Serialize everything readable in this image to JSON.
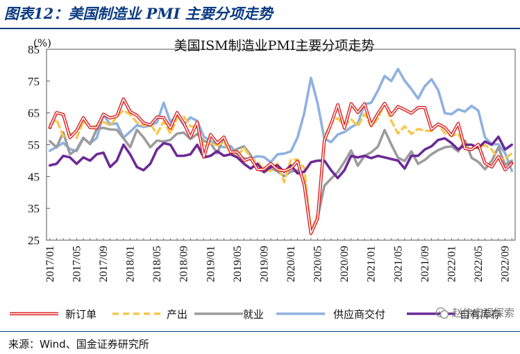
{
  "figure_title": "图表12：美国制造业 PMI 主要分项走势",
  "source": "来源：Wind、国金证券研究所",
  "watermark": "赵伟宏观探索",
  "colors": {
    "header_blue": "#0b3b80",
    "new_orders": "#e01b1b",
    "production": "#f6c84c",
    "employment": "#9c9c9c",
    "supplier_deliveries": "#8eb1e0",
    "inventories": "#6c2a96"
  },
  "chart_data": {
    "type": "line",
    "title": "美国ISM制造业PMI主要分项走势",
    "ylabel": "(%)",
    "ylim": [
      25,
      85
    ],
    "yticks": [
      25,
      35,
      45,
      55,
      65,
      75,
      85
    ],
    "x_tick_labels": [
      "2017/01",
      "2017/05",
      "2017/09",
      "2018/01",
      "2018/05",
      "2018/09",
      "2019/01",
      "2019/05",
      "2019/09",
      "2020/01",
      "2020/05",
      "2020/09",
      "2021/01",
      "2021/05",
      "2021/09",
      "2022/01",
      "2022/05",
      "2022/09"
    ],
    "x": [
      "2017/01",
      "2017/02",
      "2017/03",
      "2017/04",
      "2017/05",
      "2017/06",
      "2017/07",
      "2017/08",
      "2017/09",
      "2017/10",
      "2017/11",
      "2017/12",
      "2018/01",
      "2018/02",
      "2018/03",
      "2018/04",
      "2018/05",
      "2018/06",
      "2018/07",
      "2018/08",
      "2018/09",
      "2018/10",
      "2018/11",
      "2018/12",
      "2019/01",
      "2019/02",
      "2019/03",
      "2019/04",
      "2019/05",
      "2019/06",
      "2019/07",
      "2019/08",
      "2019/09",
      "2019/10",
      "2019/11",
      "2019/12",
      "2020/01",
      "2020/02",
      "2020/03",
      "2020/04",
      "2020/05",
      "2020/06",
      "2020/07",
      "2020/08",
      "2020/09",
      "2020/10",
      "2020/11",
      "2020/12",
      "2021/01",
      "2021/02",
      "2021/03",
      "2021/04",
      "2021/05",
      "2021/06",
      "2021/07",
      "2021/08",
      "2021/09",
      "2021/10",
      "2021/11",
      "2021/12",
      "2022/01",
      "2022/02",
      "2022/03",
      "2022/04",
      "2022/05",
      "2022/06",
      "2022/07",
      "2022/08",
      "2022/09",
      "2022/10"
    ],
    "grid": false,
    "legend_position": "bottom",
    "series": [
      {
        "name": "新订单",
        "values": [
          60.4,
          65.1,
          64.5,
          57.2,
          59.5,
          63.5,
          60.4,
          60.3,
          64.6,
          63.4,
          64.0,
          69.4,
          65.4,
          64.2,
          61.9,
          61.2,
          63.7,
          63.5,
          60.2,
          65.1,
          61.8,
          57.4,
          62.1,
          51.1,
          58.2,
          55.5,
          57.4,
          52.7,
          52.7,
          50.0,
          50.8,
          47.2,
          47.3,
          49.1,
          47.2,
          46.8,
          47.6,
          49.8,
          42.2,
          27.1,
          31.8,
          56.4,
          61.5,
          67.6,
          60.2,
          67.9,
          65.1,
          67.9,
          61.1,
          64.8,
          68.0,
          64.3,
          67.0,
          66.0,
          64.9,
          66.7,
          66.7,
          59.8,
          61.5,
          60.4,
          57.9,
          61.7,
          53.8,
          53.5,
          55.1,
          49.2,
          48.0,
          51.3,
          47.1,
          49.2
        ]
      },
      {
        "name": "产出",
        "values": [
          61.4,
          62.9,
          57.6,
          58.6,
          57.1,
          62.4,
          60.6,
          61.0,
          62.2,
          61.0,
          63.9,
          65.8,
          64.5,
          62.0,
          61.0,
          61.5,
          58.4,
          62.3,
          58.5,
          63.3,
          63.9,
          60.8,
          60.6,
          54.3,
          55.5,
          54.8,
          55.8,
          52.3,
          51.3,
          54.1,
          50.8,
          49.5,
          47.3,
          46.7,
          49.1,
          43.2,
          50.3,
          50.3,
          47.7,
          27.5,
          33.2,
          57.3,
          62.1,
          63.3,
          61.0,
          63.0,
          60.8,
          64.7,
          60.7,
          63.2,
          68.1,
          62.5,
          58.5,
          60.8,
          58.4,
          60.0,
          59.4,
          59.3,
          61.5,
          58.6,
          57.8,
          58.5,
          54.5,
          53.6,
          54.2,
          54.9,
          53.5,
          50.4,
          50.6,
          52.3
        ]
      },
      {
        "name": "就业",
        "values": [
          56.1,
          54.2,
          58.9,
          52.0,
          53.5,
          57.2,
          55.2,
          59.9,
          60.3,
          59.8,
          59.7,
          57.0,
          54.2,
          59.7,
          57.3,
          54.2,
          56.3,
          56.0,
          56.5,
          58.5,
          58.8,
          56.8,
          58.4,
          56.2,
          55.5,
          52.3,
          57.5,
          52.4,
          53.7,
          54.5,
          51.7,
          47.4,
          46.3,
          47.7,
          46.6,
          45.1,
          46.6,
          46.9,
          43.8,
          27.5,
          32.1,
          42.1,
          44.3,
          46.4,
          49.6,
          53.2,
          48.4,
          51.5,
          52.6,
          54.4,
          59.6,
          55.1,
          50.9,
          49.9,
          52.9,
          49.0,
          50.2,
          52.0,
          53.3,
          54.2,
          54.5,
          52.9,
          56.3,
          50.9,
          49.6,
          47.3,
          49.9,
          54.2,
          48.7,
          50.0
        ]
      },
      {
        "name": "供应商交付",
        "values": [
          53.1,
          54.3,
          55.6,
          53.6,
          53.0,
          57.0,
          55.4,
          57.1,
          64.4,
          61.4,
          61.7,
          57.2,
          59.1,
          61.1,
          60.6,
          61.0,
          62.0,
          68.2,
          62.1,
          64.5,
          61.2,
          63.6,
          62.5,
          57.5,
          56.2,
          54.9,
          54.2,
          54.6,
          52.0,
          50.7,
          50.5,
          51.4,
          51.1,
          49.5,
          52.0,
          52.2,
          52.9,
          57.3,
          65.0,
          76.0,
          68.0,
          56.9,
          55.8,
          58.2,
          59.0,
          60.5,
          61.7,
          67.7,
          68.2,
          72.0,
          76.6,
          75.0,
          78.8,
          75.1,
          72.5,
          69.5,
          73.4,
          75.6,
          72.2,
          64.9,
          64.6,
          66.1,
          65.4,
          67.2,
          65.7,
          57.3,
          55.2,
          55.1,
          52.4,
          46.8
        ]
      },
      {
        "name": "自有库存",
        "values": [
          48.5,
          49.0,
          51.5,
          51.0,
          49.0,
          51.0,
          50.0,
          52.0,
          52.5,
          48.0,
          50.0,
          55.0,
          52.0,
          48.0,
          47.0,
          49.0,
          53.5,
          55.5,
          55.0,
          51.5,
          51.5,
          52.0,
          55.0,
          51.0,
          51.5,
          53.0,
          51.5,
          52.0,
          51.0,
          49.0,
          47.5,
          49.0,
          46.5,
          48.0,
          48.5,
          46.5,
          48.5,
          46.0,
          46.5,
          49.5,
          50.0,
          50.0,
          47.0,
          44.5,
          47.0,
          51.5,
          51.0,
          51.5,
          50.8,
          51.5,
          51.0,
          50.5,
          50.0,
          47.5,
          51.5,
          51.5,
          53.5,
          54.5,
          56.5,
          57.0,
          55.5,
          53.5,
          55.0,
          55.0,
          54.0,
          56.0,
          55.0,
          57.5,
          53.5,
          55.0
        ]
      }
    ]
  }
}
